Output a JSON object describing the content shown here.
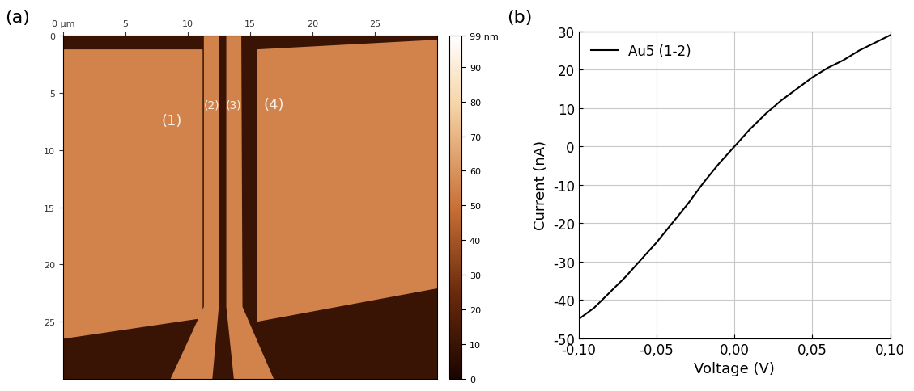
{
  "chart_data": [
    {
      "type": "image",
      "panel_label": "(a)",
      "xlim": [
        0,
        30
      ],
      "ylim": [
        30,
        0
      ],
      "xticks": [
        {
          "value": 0,
          "label": "0 µm"
        },
        5,
        10,
        15,
        20,
        25
      ],
      "yticks": [
        0,
        5,
        10,
        15,
        20,
        25
      ],
      "substrate_height": 10,
      "electrode_height": 55,
      "colorbar": {
        "range": [
          0,
          99
        ],
        "ticks": [
          0,
          10,
          20,
          30,
          40,
          50,
          60,
          70,
          80,
          90,
          {
            "value": 99,
            "label": "99 nm"
          }
        ]
      },
      "annotations": [
        "(1)",
        "(2)",
        "(3)",
        "(4)"
      ]
    },
    {
      "type": "line",
      "panel_label": "(b)",
      "x_label": "Voltage (V)",
      "y_label": "Current (nA)",
      "x": [
        -0.1,
        -0.09,
        -0.08,
        -0.07,
        -0.06,
        -0.05,
        -0.04,
        -0.03,
        -0.02,
        -0.01,
        0.0,
        0.01,
        0.02,
        0.03,
        0.04,
        0.05,
        0.06,
        0.07,
        0.08,
        0.09,
        0.1
      ],
      "series": [
        {
          "name": "Au5 (1-2)",
          "color": "#000000",
          "values": [
            -45,
            -42,
            -38,
            -34,
            -29.5,
            -25,
            -20,
            -15,
            -9.5,
            -4.5,
            0,
            4.5,
            8.5,
            12,
            15,
            18,
            20.5,
            22.5,
            25,
            27,
            29
          ]
        }
      ],
      "xlim": [
        -0.1,
        0.1
      ],
      "xticks": [
        {
          "value": -0.1,
          "label": "-0,10"
        },
        {
          "value": -0.05,
          "label": "-0,05"
        },
        {
          "value": 0,
          "label": "0,00"
        },
        {
          "value": 0.05,
          "label": "0,05"
        },
        {
          "value": 0.1,
          "label": "0,10"
        }
      ],
      "ylim": [
        -50,
        30
      ],
      "yticks": [
        -50,
        -40,
        -30,
        -20,
        -10,
        0,
        10,
        20,
        30
      ],
      "grid": true,
      "legend": "upper left"
    }
  ]
}
